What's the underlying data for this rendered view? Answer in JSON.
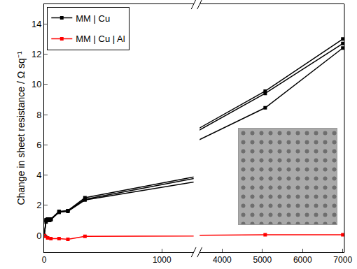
{
  "chart_data": {
    "type": "line",
    "y_label": "Change in sheet resistance / Ω sq⁻¹",
    "xlim": [
      [
        0,
        1270
      ],
      [
        3440,
        7040
      ]
    ],
    "xticks": [
      0,
      1000,
      4000,
      5000,
      6000,
      7000
    ],
    "ylim": [
      -1.1,
      15.3
    ],
    "yticks": [
      0,
      2,
      4,
      6,
      8,
      10,
      12,
      14
    ],
    "legend": "top-left",
    "marker": "square",
    "series": [
      {
        "name": "MM | Cu",
        "color": "#000000",
        "x": [
          0,
          17,
          30,
          46,
          58,
          127,
          202,
          347,
          5070,
          7000
        ],
        "values": [
          0,
          0.9,
          1.1,
          1.0,
          1.05,
          1.55,
          1.6,
          2.35,
          8.45,
          12.4
        ]
      },
      {
        "name": "MM | Cu",
        "color": "#000000",
        "x": [
          0,
          17,
          30,
          46,
          58,
          127,
          202,
          347,
          5070,
          7000
        ],
        "values": [
          0,
          1.0,
          1.05,
          1.0,
          1.1,
          1.55,
          1.65,
          2.4,
          9.4,
          12.7
        ]
      },
      {
        "name": "MM | Cu",
        "color": "#000000",
        "x": [
          0,
          17,
          30,
          46,
          58,
          127,
          202,
          347,
          5070,
          7000
        ],
        "values": [
          0,
          1.05,
          1.1,
          1.05,
          1.1,
          1.6,
          1.65,
          2.5,
          9.55,
          13.0
        ]
      },
      {
        "name": "MM | Cu | Al",
        "color": "#ff0000",
        "x": [
          0,
          10,
          30,
          58,
          127,
          202,
          347,
          5070,
          7000
        ],
        "values": [
          0,
          -0.05,
          -0.15,
          -0.2,
          -0.2,
          -0.25,
          -0.05,
          0.05,
          0.05
        ]
      }
    ]
  }
}
